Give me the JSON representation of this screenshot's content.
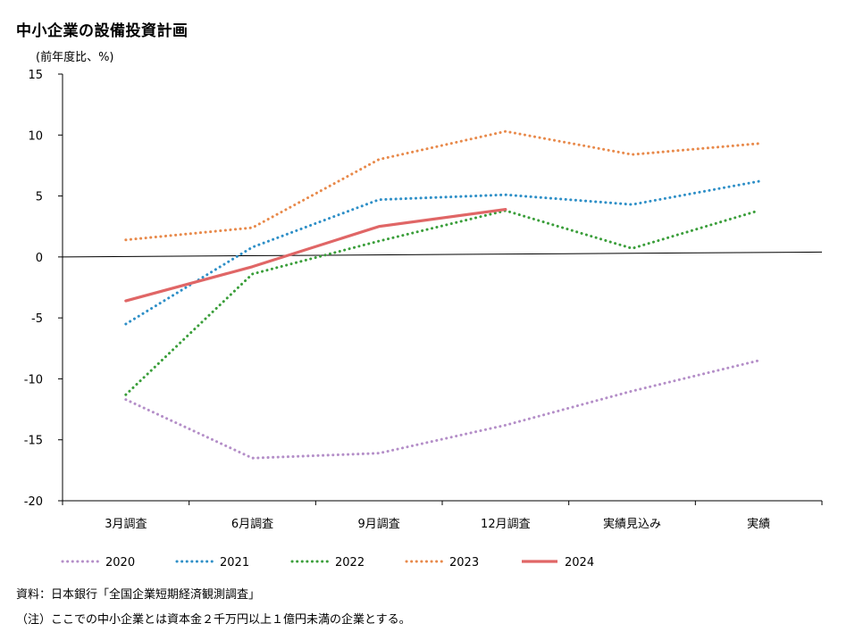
{
  "title": "中小企業の設備投資計画",
  "unit_label": "(前年度比、%)",
  "source": "資料：日本銀行「全国企業短期経済観測調査」",
  "note": "（注）ここでの中小企業とは資本金２千万円以上１億円未満の企業とする。",
  "chart_data": {
    "type": "line",
    "categories": [
      "3月調査",
      "6月調査",
      "9月調査",
      "12月調査",
      "実績見込み",
      "実績"
    ],
    "ylim": [
      -20,
      15
    ],
    "yticks": [
      15,
      10,
      5,
      0,
      -5,
      -10,
      -15,
      -20
    ],
    "grid": false,
    "legend_position": "bottom",
    "series": [
      {
        "name": "2020",
        "color": "#b48ec8",
        "style": "dotted",
        "values": [
          -11.7,
          -16.5,
          -16.1,
          -13.8,
          -11.0,
          -8.5
        ]
      },
      {
        "name": "2021",
        "color": "#2e8fc7",
        "style": "dotted",
        "values": [
          -5.5,
          0.8,
          4.7,
          5.1,
          4.3,
          6.2
        ]
      },
      {
        "name": "2022",
        "color": "#3a9e3a",
        "style": "dotted",
        "values": [
          -11.3,
          -1.4,
          1.3,
          3.8,
          0.7,
          3.8
        ]
      },
      {
        "name": "2023",
        "color": "#e8894a",
        "style": "dotted",
        "values": [
          1.4,
          2.4,
          8.0,
          10.3,
          8.4,
          9.3
        ]
      },
      {
        "name": "2024",
        "color": "#e06666",
        "style": "solid",
        "values": [
          -3.6,
          -0.8,
          2.5,
          3.9,
          null,
          null
        ]
      }
    ],
    "zero_line": {
      "y_left": 0,
      "y_right": 0.4
    }
  }
}
